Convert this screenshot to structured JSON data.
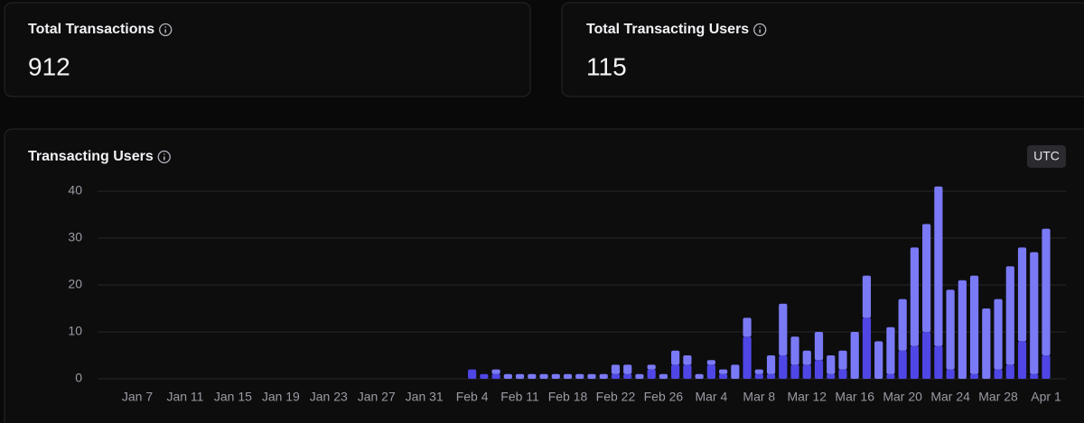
{
  "cards": [
    {
      "title": "Total Transactions",
      "value": "912"
    },
    {
      "title": "Total Transacting Users",
      "value": "115"
    }
  ],
  "chart_data": {
    "type": "stacked_bar",
    "title": "Transacting Users",
    "timezone": "UTC",
    "categories": [
      "Jan 7",
      null,
      null,
      null,
      "Jan 11",
      null,
      null,
      null,
      "Jan 15",
      null,
      null,
      null,
      "Jan 19",
      null,
      null,
      null,
      "Jan 23",
      null,
      null,
      null,
      "Jan 27",
      null,
      null,
      null,
      "Jan 31",
      null,
      null,
      null,
      "Feb 4",
      null,
      null,
      null,
      "Feb 11",
      null,
      null,
      null,
      "Feb 18",
      null,
      null,
      null,
      "Feb 22",
      null,
      null,
      null,
      "Feb 26",
      null,
      null,
      null,
      "Mar 4",
      null,
      null,
      null,
      "Mar 8",
      null,
      null,
      null,
      "Mar 12",
      null,
      null,
      null,
      "Mar 16",
      null,
      null,
      null,
      "Mar 20",
      null,
      null,
      null,
      "Mar 24",
      null,
      null,
      null,
      "Mar 28",
      null,
      null,
      null,
      "Apr 1"
    ],
    "series": [
      {
        "color": "#4f46e5",
        "values": [
          0,
          0,
          0,
          0,
          0,
          0,
          0,
          0,
          0,
          0,
          0,
          0,
          0,
          0,
          0,
          0,
          0,
          0,
          0,
          0,
          0,
          0,
          0,
          0,
          0,
          0,
          0,
          0,
          2,
          1,
          1,
          0,
          0,
          0,
          0,
          0,
          0,
          0,
          0,
          0,
          1,
          1,
          0,
          2,
          0,
          3,
          3,
          0,
          3,
          1,
          0,
          9,
          1,
          1,
          5,
          3,
          3,
          4,
          1,
          2,
          0,
          13,
          0,
          1,
          6,
          7,
          10,
          7,
          2,
          0,
          1,
          0,
          2,
          3,
          8,
          1,
          5
        ]
      },
      {
        "color": "#7a7af6",
        "values": [
          0,
          0,
          0,
          0,
          0,
          0,
          0,
          0,
          0,
          0,
          0,
          0,
          0,
          0,
          0,
          0,
          0,
          0,
          0,
          0,
          0,
          0,
          0,
          0,
          0,
          0,
          0,
          0,
          0,
          0,
          1,
          1,
          1,
          1,
          1,
          1,
          1,
          1,
          1,
          1,
          2,
          2,
          1,
          1,
          1,
          3,
          2,
          1,
          1,
          1,
          3,
          4,
          1,
          4,
          11,
          6,
          3,
          6,
          4,
          4,
          10,
          9,
          8,
          10,
          11,
          21,
          23,
          34,
          17,
          21,
          21,
          15,
          15,
          21,
          20,
          26,
          27
        ]
      }
    ],
    "ylim": [
      0,
      41
    ],
    "yticks": [
      0,
      10,
      20,
      30,
      40
    ],
    "grid": true
  }
}
